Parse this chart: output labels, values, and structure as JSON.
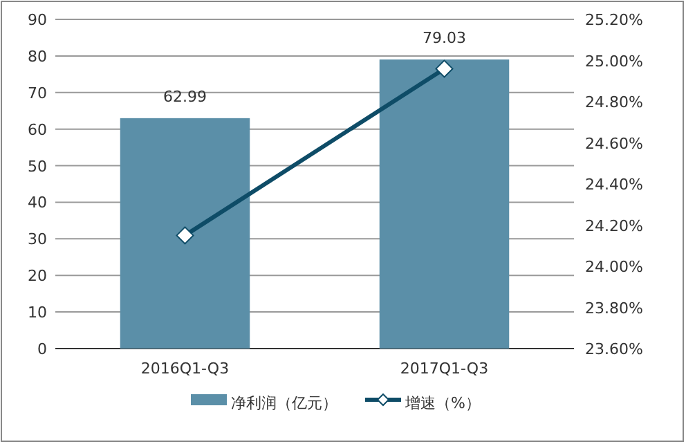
{
  "chart_data": {
    "type": "bar",
    "categories": [
      "2016Q1-Q3",
      "2017Q1-Q3"
    ],
    "series": [
      {
        "name": "净利润（亿元）",
        "color": "#5b8fa8",
        "values": [
          62.99,
          79.03
        ],
        "value_labels": [
          "62.99",
          "79.03"
        ]
      },
      {
        "name": "增速（%）",
        "type": "line",
        "axis": "y2",
        "color": "#0e4c67",
        "marker": "diamond",
        "values": [
          24.15,
          24.96
        ]
      }
    ],
    "ylim": [
      0,
      90
    ],
    "yticks": [
      0,
      10,
      20,
      30,
      40,
      50,
      60,
      70,
      80,
      90
    ],
    "y2lim": [
      23.6,
      25.2
    ],
    "y2ticks": [
      {
        "value": 23.6,
        "label": "23.60%"
      },
      {
        "value": 23.8,
        "label": "23.80%"
      },
      {
        "value": 24.0,
        "label": "24.00%"
      },
      {
        "value": 24.2,
        "label": "24.20%"
      },
      {
        "value": 24.4,
        "label": "24.40%"
      },
      {
        "value": 24.6,
        "label": "24.60%"
      },
      {
        "value": 24.8,
        "label": "24.80%"
      },
      {
        "value": 25.0,
        "label": "25.00%"
      },
      {
        "value": 25.2,
        "label": "25.20%"
      }
    ],
    "grid": "y",
    "legend": "bottom"
  }
}
